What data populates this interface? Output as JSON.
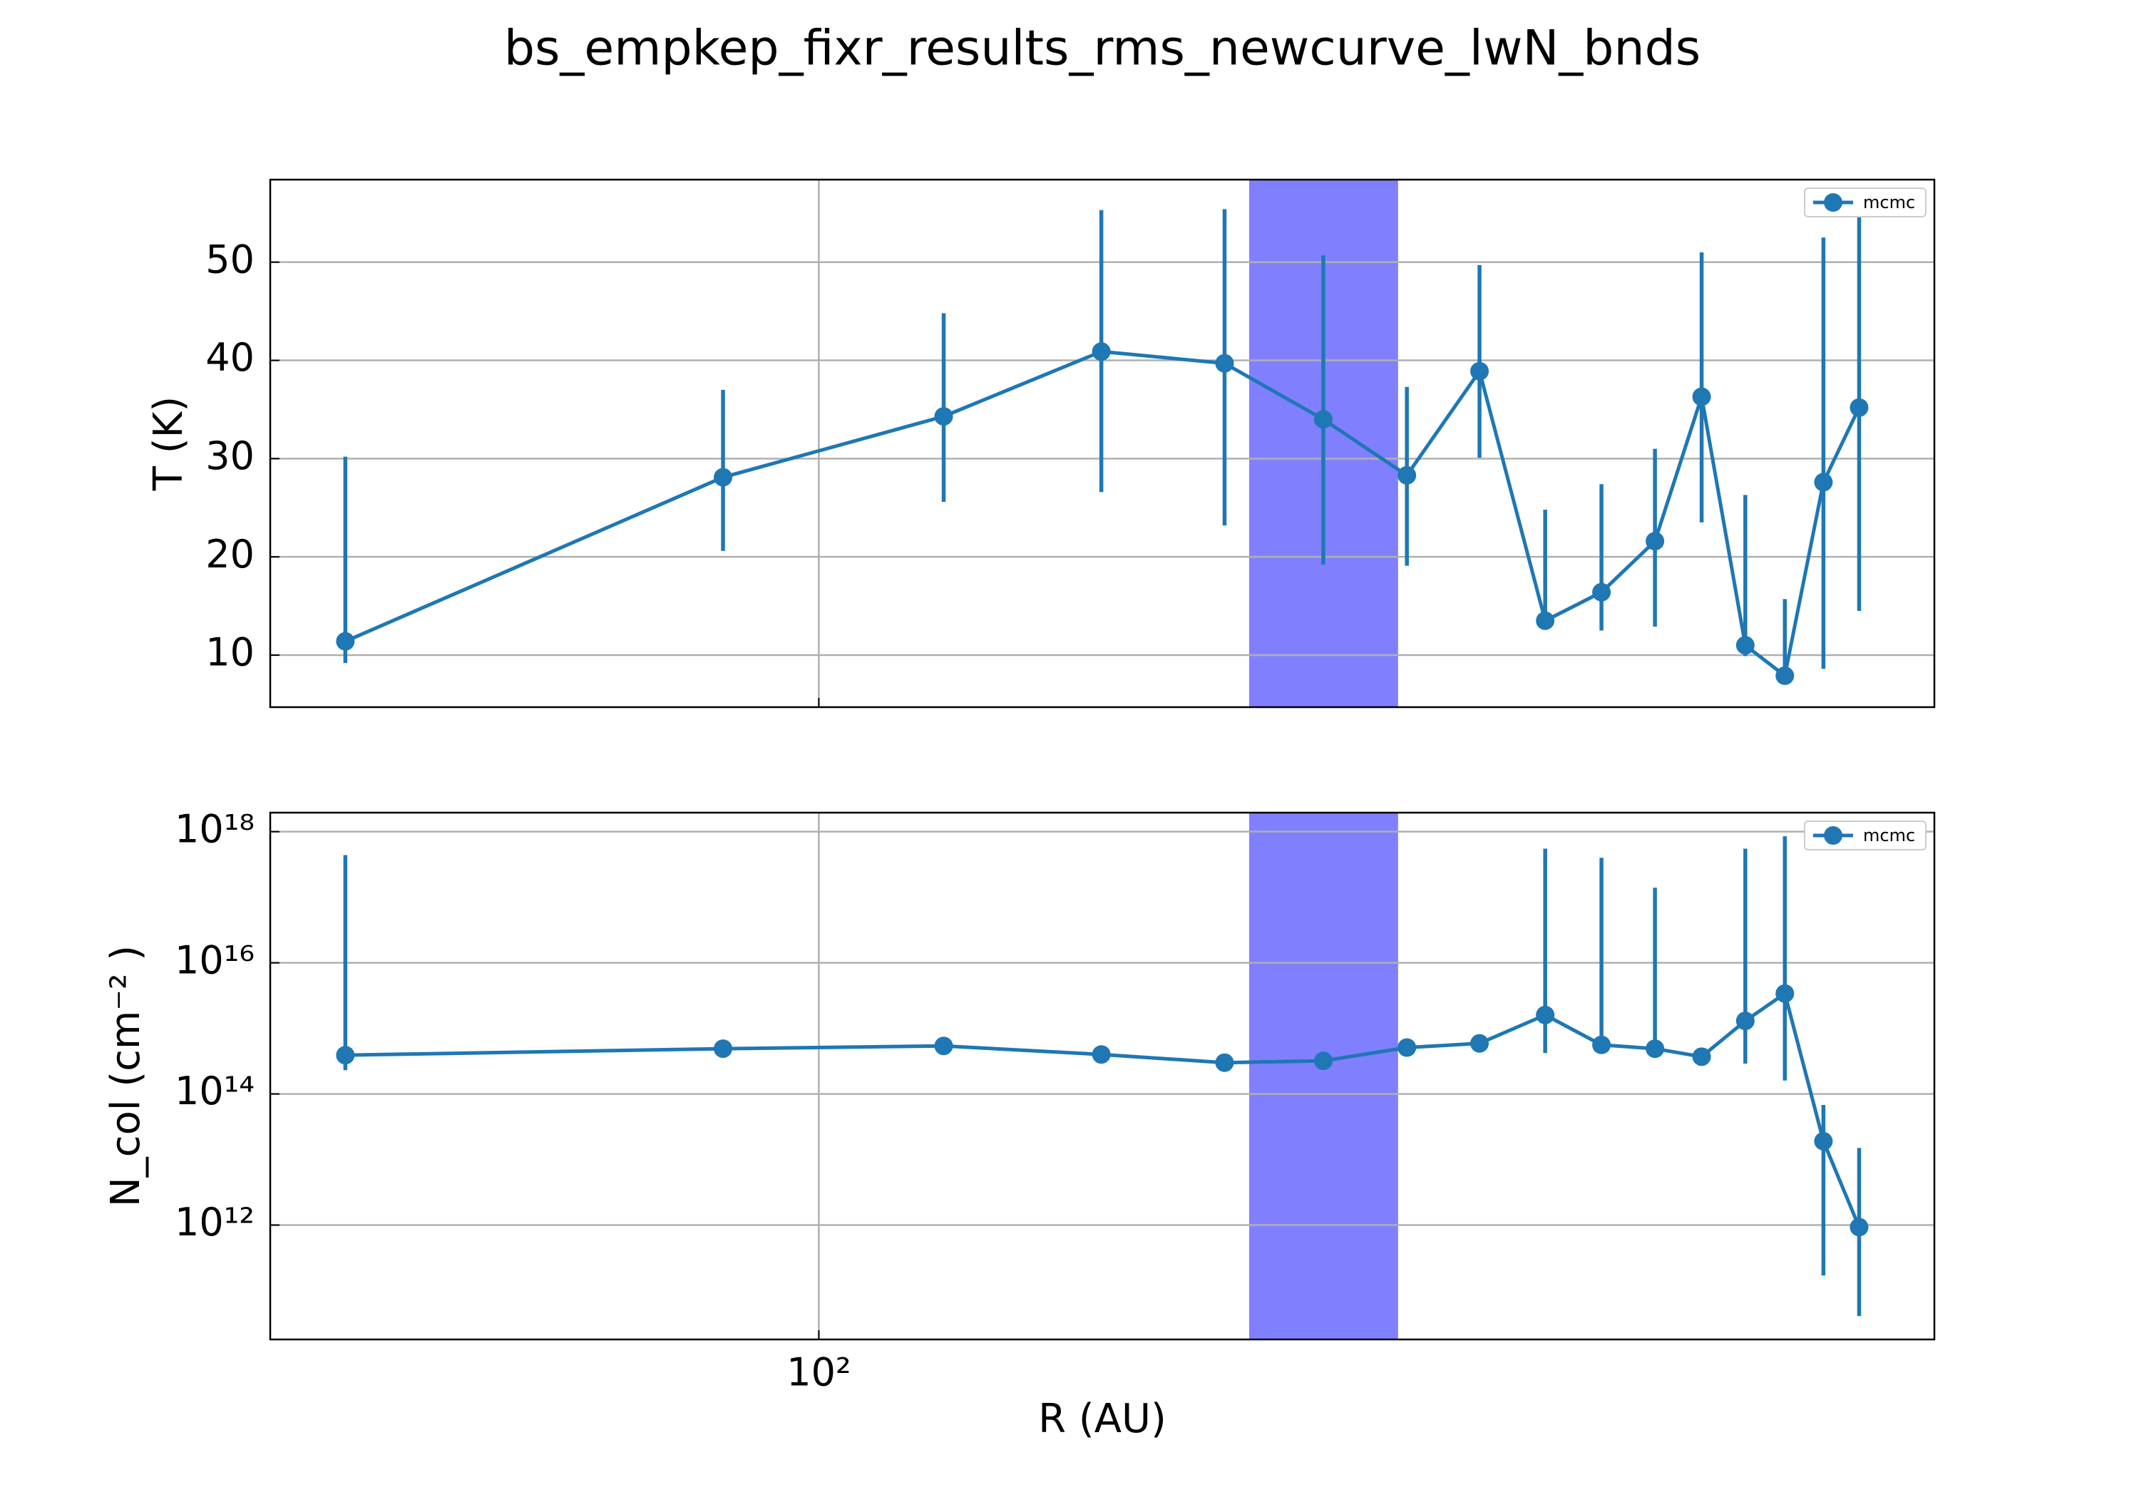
{
  "title": "bs_empkep_fixr_results_rms_newcurve_lwN_bnds",
  "chart_data": [
    {
      "type": "line",
      "ylabel": "T (K)",
      "xscale": "log",
      "yscale": "linear",
      "grid": true,
      "legend": "upper right",
      "xlim": [
        36.6,
        772
      ],
      "ylim": [
        4.7,
        58.4
      ],
      "yticks": [
        10,
        20,
        30,
        40,
        50
      ],
      "shaded_span": [
        220,
        289
      ],
      "shaded_color": "#8080ff",
      "x": [
        42.0,
        83.9,
        125.7,
        167.8,
        210.3,
        252,
        293.7,
        335.5,
        378.4,
        419.5,
        462.7,
        504,
        546,
        587,
        630,
        672.6
      ],
      "series": [
        {
          "name": "mcmc",
          "color": "#1f77b4",
          "values": [
            11.4,
            28.1,
            34.3,
            40.9,
            39.7,
            34.0,
            28.3,
            38.9,
            13.5,
            16.4,
            21.6,
            36.3,
            11.0,
            7.9,
            27.6,
            35.2
          ],
          "lower": [
            9.2,
            20.6,
            25.6,
            26.6,
            23.2,
            19.2,
            19.1,
            30.1,
            12.8,
            12.5,
            12.9,
            23.5,
            9.9,
            7.5,
            8.6,
            14.5
          ],
          "upper": [
            30.2,
            37.0,
            44.8,
            55.3,
            55.4,
            50.7,
            37.3,
            49.7,
            24.8,
            27.4,
            31.0,
            51.0,
            26.3,
            15.7,
            52.5,
            55.7
          ]
        }
      ]
    },
    {
      "type": "line",
      "ylabel": "N_col (cm⁻² )",
      "xlabel": "R (AU)",
      "xscale": "log",
      "yscale": "log",
      "grid": true,
      "legend": "upper right",
      "xlim": [
        36.6,
        772
      ],
      "ylim": [
        18000000000.0,
        1.95e+18
      ],
      "xticks": [
        {
          "value": 100,
          "label": "10²"
        }
      ],
      "yticks": [
        {
          "value": 1000000000000.0,
          "label": "10¹²"
        },
        {
          "value": 100000000000000.0,
          "label": "10¹⁴"
        },
        {
          "value": 1e+16,
          "label": "10¹⁶"
        },
        {
          "value": 1e+18,
          "label": "10¹⁸"
        }
      ],
      "shaded_span": [
        220,
        289
      ],
      "shaded_color": "#8080ff",
      "x": [
        42.0,
        83.9,
        125.7,
        167.8,
        210.3,
        252,
        293.7,
        335.5,
        378.4,
        419.5,
        462.7,
        504,
        546,
        587,
        630,
        672.6
      ],
      "series": [
        {
          "name": "mcmc",
          "color": "#1f77b4",
          "values": [
            390000000000000.0,
            490000000000000.0,
            540000000000000.0,
            400000000000000.0,
            300000000000000.0,
            320000000000000.0,
            510000000000000.0,
            590000000000000.0,
            1600000000000000.0,
            560000000000000.0,
            490000000000000.0,
            370000000000000.0,
            1300000000000000.0,
            3400000000000000.0,
            19000000000000.0,
            930000000000.0
          ],
          "lower": [
            230000000000000.0,
            null,
            null,
            null,
            null,
            null,
            null,
            null,
            420000000000000.0,
            450000000000000.0,
            400000000000000.0,
            null,
            290000000000000.0,
            160000000000000.0,
            170000000000.0,
            41000000000.0
          ],
          "upper": [
            4.4e+17,
            null,
            null,
            null,
            null,
            null,
            null,
            null,
            5.5e+17,
            4e+17,
            1.4e+17,
            null,
            5.5e+17,
            8.5e+17,
            68000000000000.0,
            15000000000000.0
          ]
        }
      ]
    }
  ]
}
